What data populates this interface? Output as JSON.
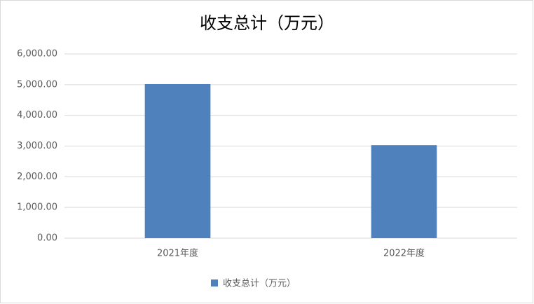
{
  "chart_data": {
    "type": "bar",
    "title": "收支总计（万元）",
    "categories": [
      "2021年度",
      "2022年度"
    ],
    "series": [
      {
        "name": "收支总计（万元）",
        "color": "#4f81bd",
        "values": [
          5020,
          3030
        ]
      }
    ],
    "ylim": [
      0,
      6000
    ],
    "yticks": [
      {
        "value": 0,
        "label": "0.00"
      },
      {
        "value": 1000,
        "label": "1,000.00"
      },
      {
        "value": 2000,
        "label": "2,000.00"
      },
      {
        "value": 3000,
        "label": "3,000.00"
      },
      {
        "value": 4000,
        "label": "4,000.00"
      },
      {
        "value": 5000,
        "label": "5,000.00"
      },
      {
        "value": 6000,
        "label": "6,000.00"
      }
    ],
    "grid": true,
    "legend": "bottom"
  }
}
